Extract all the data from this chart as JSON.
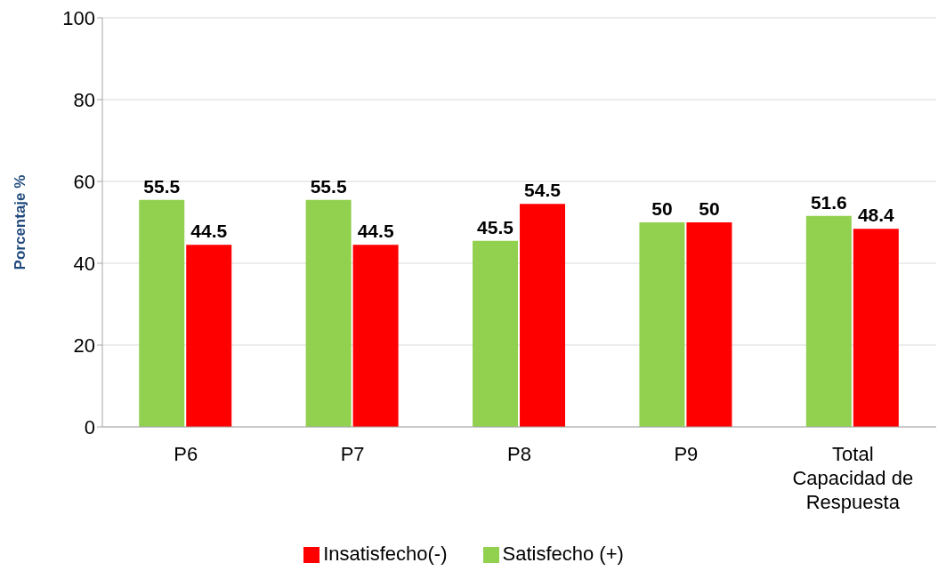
{
  "chart_data": {
    "type": "bar",
    "ylabel": "Porcentaje %",
    "categories": [
      "P6",
      "P7",
      "P8",
      "P9",
      "Total Capacidad de Respuesta"
    ],
    "series": [
      {
        "name": "Satisfecho (+)",
        "color": "#92d050",
        "values": [
          55.5,
          55.5,
          45.5,
          50,
          51.6
        ]
      },
      {
        "name": "Insatisfecho(-)",
        "color": "#ff0000",
        "values": [
          44.5,
          44.5,
          54.5,
          50,
          48.4
        ]
      }
    ],
    "ylim": [
      0,
      100
    ],
    "yticks": [
      0,
      20,
      40,
      60,
      80,
      100
    ],
    "grid": "y",
    "legend": "bottom",
    "data_labels": true
  }
}
